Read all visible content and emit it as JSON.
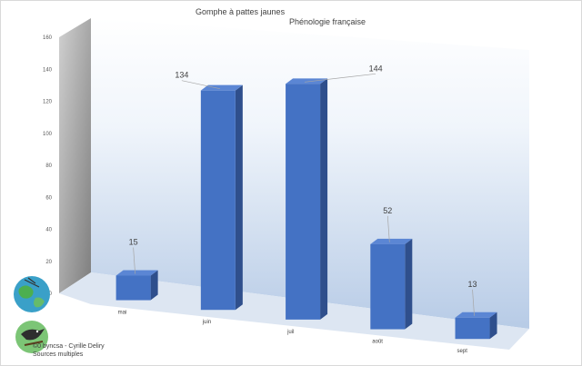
{
  "chart_data": {
    "type": "bar",
    "title": "Gomphe à pattes jaunes",
    "subtitle": "Phénologie française",
    "categories": [
      "mai",
      "juin",
      "juil",
      "août",
      "sept"
    ],
    "values": [
      15,
      134,
      144,
      52,
      13
    ],
    "ylim": [
      0,
      160
    ],
    "yticks": [
      0,
      20,
      40,
      60,
      80,
      100,
      120,
      140,
      160
    ],
    "bar_color": "#4472c4",
    "grid": false,
    "legend": "none"
  },
  "credit": {
    "line1": "©0 byncsa - Cyrille Deliry",
    "line2": "Sources multiples"
  },
  "logos": [
    "globe-logo",
    "bird-logo"
  ]
}
